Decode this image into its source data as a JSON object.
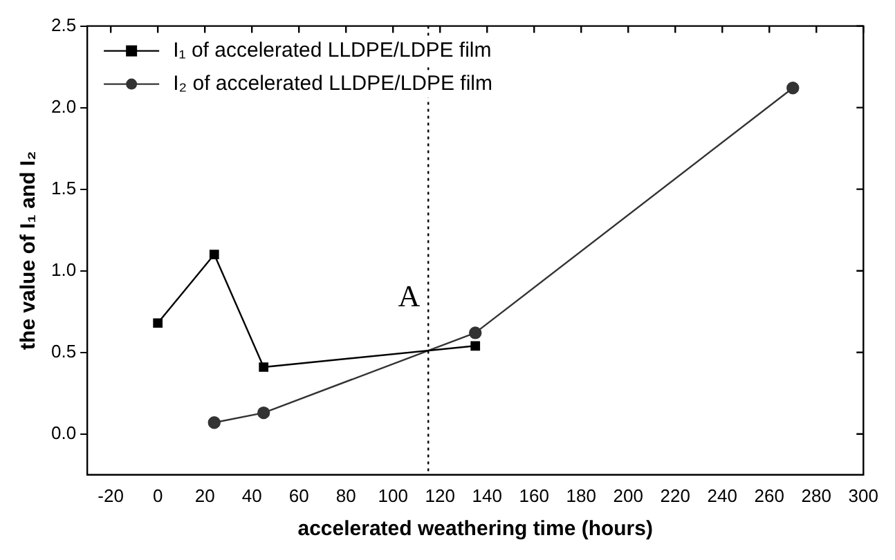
{
  "chart_data": {
    "type": "line",
    "xlabel": "accelerated weathering time (hours)",
    "ylabel": "the value of I₁ and I₂",
    "xlim": [
      -30,
      300
    ],
    "xticks": [
      -20,
      0,
      20,
      40,
      60,
      80,
      100,
      120,
      140,
      160,
      180,
      200,
      220,
      240,
      260,
      280,
      300
    ],
    "ylim": [
      -0.25,
      2.5
    ],
    "yticks": [
      {
        "value": 0,
        "label": "0.0"
      },
      {
        "value": 0.5,
        "label": "0.5"
      },
      {
        "value": 1,
        "label": "1.0"
      },
      {
        "value": 1.5,
        "label": "1.5"
      },
      {
        "value": 2,
        "label": "2.0"
      },
      {
        "value": 2.5,
        "label": "2.5"
      }
    ],
    "grid": false,
    "legend": "top left",
    "line_style": "solid",
    "series": [
      {
        "name": "I₁ of accelerated LLDPE/LDPE film",
        "color": "#000000",
        "marker": "square",
        "x": [
          0,
          24,
          45,
          135
        ],
        "values": [
          0.68,
          1.1,
          0.41,
          0.54
        ]
      },
      {
        "name": "I₂ of accelerated LLDPE/LDPE film",
        "color": "#333333",
        "marker": "circle",
        "x": [
          24,
          45,
          135,
          270
        ],
        "values": [
          0.07,
          0.13,
          0.62,
          2.12
        ]
      }
    ],
    "ref_lines": [
      {
        "axis": "x",
        "value": 115,
        "line_style": "dotted",
        "color": "#000000"
      }
    ],
    "annotations": [
      "A"
    ]
  }
}
